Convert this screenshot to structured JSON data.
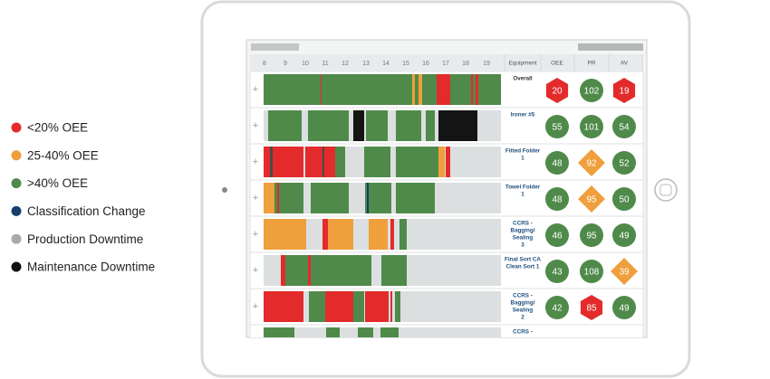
{
  "legend": [
    {
      "label": "<20% OEE",
      "color": "#e32b2b"
    },
    {
      "label": "25-40% OEE",
      "color": "#ef9f3c"
    },
    {
      "label": ">40% OEE",
      "color": "#4f8a4b"
    },
    {
      "label": "Classification Change",
      "color": "#153e6b"
    },
    {
      "label": "Production Downtime",
      "color": "#a7abad"
    },
    {
      "label": "Maintenance Downtime",
      "color": "#111111"
    }
  ],
  "table": {
    "hours": [
      "8",
      "9",
      "10",
      "11",
      "12",
      "13",
      "14",
      "15",
      "16",
      "17",
      "18",
      "19"
    ],
    "headers": [
      "Equipment",
      "OEE",
      "PR",
      "AV"
    ],
    "rows": [
      {
        "equipment": [
          "Overall"
        ],
        "cells": [
          {
            "value": 20,
            "color": "#e32b2b"
          },
          {
            "value": 102,
            "color": "#4f8a4b"
          },
          {
            "value": 19,
            "color": "#e32b2b"
          }
        ]
      },
      {
        "equipment": [
          "Ironer #5"
        ],
        "cells": [
          {
            "value": 55,
            "color": "#4f8a4b"
          },
          {
            "value": 101,
            "color": "#4f8a4b"
          },
          {
            "value": 54,
            "color": "#4f8a4b"
          }
        ]
      },
      {
        "equipment": [
          "Fitted Folder",
          "1"
        ],
        "cells": [
          {
            "value": 48,
            "color": "#4f8a4b"
          },
          {
            "value": 92,
            "color": "#ef9f3c"
          },
          {
            "value": 52,
            "color": "#4f8a4b"
          }
        ]
      },
      {
        "equipment": [
          "Towel Folder",
          "1"
        ],
        "cells": [
          {
            "value": 48,
            "color": "#4f8a4b"
          },
          {
            "value": 95,
            "color": "#ef9f3c"
          },
          {
            "value": 50,
            "color": "#4f8a4b"
          }
        ]
      },
      {
        "equipment": [
          "CCRS -",
          "Bagging/",
          "Sealing",
          "3"
        ],
        "cells": [
          {
            "value": 46,
            "color": "#4f8a4b"
          },
          {
            "value": 95,
            "color": "#4f8a4b"
          },
          {
            "value": 49,
            "color": "#4f8a4b"
          }
        ]
      },
      {
        "equipment": [
          "Final Sort CA",
          "Clean Sort 1"
        ],
        "cells": [
          {
            "value": 43,
            "color": "#4f8a4b"
          },
          {
            "value": 108,
            "color": "#4f8a4b"
          },
          {
            "value": 39,
            "color": "#ef9f3c"
          }
        ]
      },
      {
        "equipment": [
          "CCRS -",
          "Bagging/",
          "Sealing",
          "2"
        ],
        "cells": [
          {
            "value": 42,
            "color": "#4f8a4b"
          },
          {
            "value": 85,
            "color": "#e32b2b"
          },
          {
            "value": 49,
            "color": "#4f8a4b"
          }
        ]
      },
      {
        "equipment": [
          "CCRS -"
        ],
        "cells": []
      }
    ]
  }
}
